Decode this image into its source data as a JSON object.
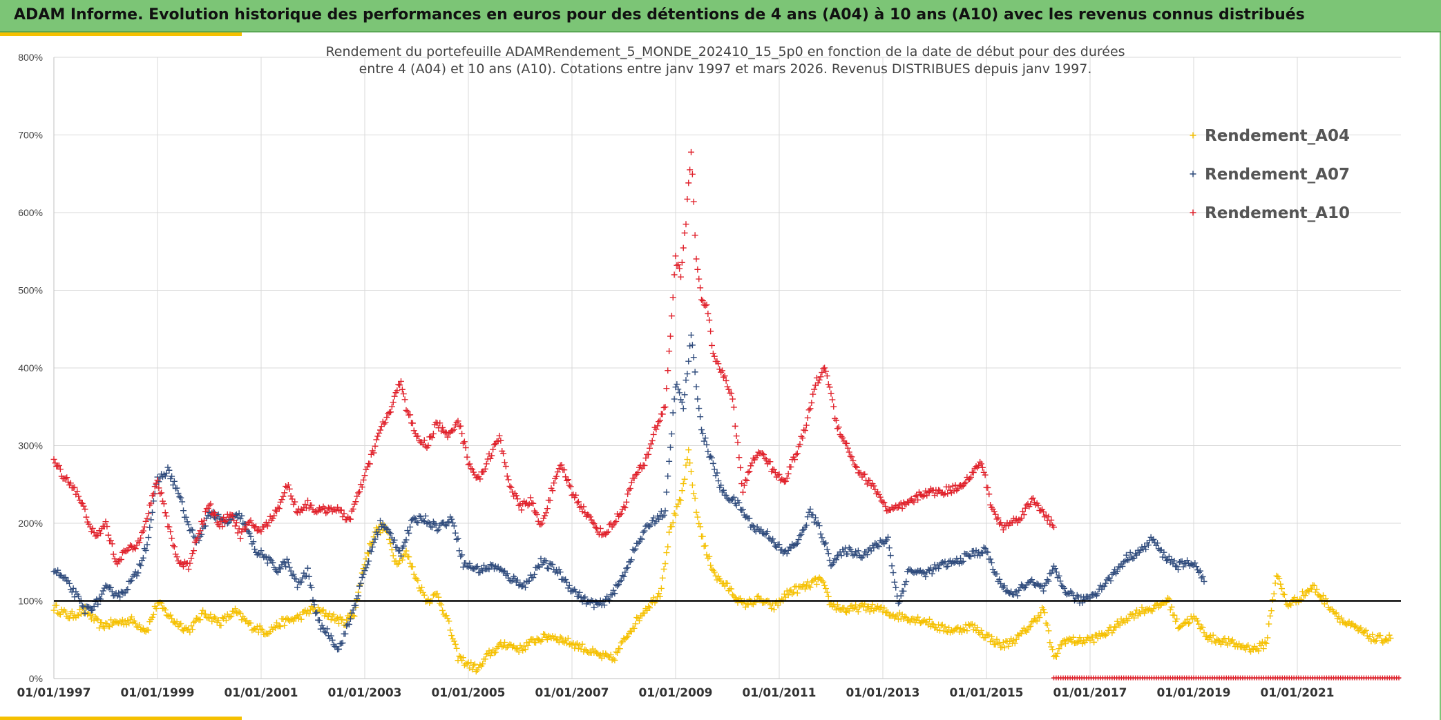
{
  "header": {
    "title": "ADAM Informe. Evolution historique des performances en euros pour des détentions de 4 ans (A04) à 10 ans (A10) avec les revenus connus distribués"
  },
  "colors": {
    "banner": "#7cc576",
    "accent": "#f5c000",
    "a04": "#f5c000",
    "a07": "#2f4b7c",
    "a10": "#e0202a",
    "reference_line": "#000000"
  },
  "chart_data": {
    "type": "scatter",
    "title_lines": [
      "Rendement du portefeuille ADAMRendement_5_MONDE_202410_15_5p0  en fonction de la date de début pour des durées",
      "entre 4 (A04) et 10 ans (A10). Cotations entre janv 1997 et mars 2026. Revenus DISTRIBUES depuis janv 1997."
    ],
    "y_ticks": [
      "0%",
      "100%",
      "200%",
      "300%",
      "400%",
      "500%",
      "600%",
      "700%",
      "800%"
    ],
    "ylim": [
      0,
      800
    ],
    "x_ticks": [
      "01/01/1997",
      "01/01/1999",
      "01/01/2001",
      "01/01/2003",
      "01/01/2005",
      "01/01/2007",
      "01/01/2009",
      "01/01/2011",
      "01/01/2013",
      "01/01/2015",
      "01/01/2017",
      "01/01/2019",
      "01/01/2021"
    ],
    "xlim": [
      1997.0,
      2023.0
    ],
    "grid": true,
    "reference_line": 100,
    "legend_position": "top-right",
    "series": [
      {
        "name": "Rendement_A04",
        "color": "#f5c000",
        "points": [
          [
            1997.0,
            92
          ],
          [
            1997.3,
            80
          ],
          [
            1997.6,
            88
          ],
          [
            1997.9,
            68
          ],
          [
            1998.2,
            72
          ],
          [
            1998.5,
            75
          ],
          [
            1998.8,
            62
          ],
          [
            1999.0,
            98
          ],
          [
            1999.3,
            75
          ],
          [
            1999.6,
            62
          ],
          [
            1999.9,
            85
          ],
          [
            2000.2,
            72
          ],
          [
            2000.5,
            86
          ],
          [
            2000.8,
            68
          ],
          [
            2001.1,
            60
          ],
          [
            2001.4,
            72
          ],
          [
            2001.7,
            78
          ],
          [
            2002.0,
            90
          ],
          [
            2002.3,
            82
          ],
          [
            2002.6,
            72
          ],
          [
            2002.8,
            85
          ],
          [
            2003.0,
            150
          ],
          [
            2003.2,
            190
          ],
          [
            2003.4,
            195
          ],
          [
            2003.6,
            150
          ],
          [
            2003.8,
            162
          ],
          [
            2004.0,
            128
          ],
          [
            2004.2,
            100
          ],
          [
            2004.4,
            108
          ],
          [
            2004.6,
            75
          ],
          [
            2004.8,
            28
          ],
          [
            2005.0,
            18
          ],
          [
            2005.2,
            12
          ],
          [
            2005.4,
            32
          ],
          [
            2005.7,
            45
          ],
          [
            2006.0,
            38
          ],
          [
            2006.3,
            50
          ],
          [
            2006.6,
            55
          ],
          [
            2006.9,
            48
          ],
          [
            2007.2,
            40
          ],
          [
            2007.5,
            30
          ],
          [
            2007.8,
            25
          ],
          [
            2008.1,
            60
          ],
          [
            2008.4,
            88
          ],
          [
            2008.7,
            110
          ],
          [
            2008.9,
            195
          ],
          [
            2009.1,
            230
          ],
          [
            2009.25,
            290
          ],
          [
            2009.4,
            215
          ],
          [
            2009.6,
            160
          ],
          [
            2009.8,
            130
          ],
          [
            2010.0,
            118
          ],
          [
            2010.3,
            95
          ],
          [
            2010.6,
            102
          ],
          [
            2010.9,
            92
          ],
          [
            2011.2,
            112
          ],
          [
            2011.5,
            118
          ],
          [
            2011.8,
            128
          ],
          [
            2012.0,
            95
          ],
          [
            2012.3,
            88
          ],
          [
            2012.6,
            92
          ],
          [
            2012.9,
            90
          ],
          [
            2013.2,
            82
          ],
          [
            2013.5,
            78
          ],
          [
            2013.8,
            75
          ],
          [
            2014.1,
            65
          ],
          [
            2014.4,
            62
          ],
          [
            2014.7,
            68
          ],
          [
            2015.0,
            55
          ],
          [
            2015.3,
            42
          ],
          [
            2015.6,
            52
          ],
          [
            2015.9,
            72
          ],
          [
            2016.1,
            90
          ],
          [
            2016.3,
            25
          ],
          [
            2016.5,
            50
          ],
          [
            2016.8,
            48
          ],
          [
            2017.1,
            52
          ],
          [
            2017.4,
            62
          ],
          [
            2017.7,
            78
          ],
          [
            2018.0,
            88
          ],
          [
            2018.3,
            92
          ],
          [
            2018.5,
            102
          ],
          [
            2018.7,
            68
          ],
          [
            2019.0,
            78
          ],
          [
            2019.3,
            52
          ],
          [
            2019.6,
            48
          ],
          [
            2019.9,
            42
          ],
          [
            2020.2,
            38
          ],
          [
            2020.4,
            45
          ],
          [
            2020.6,
            135
          ],
          [
            2020.8,
            95
          ],
          [
            2021.0,
            102
          ],
          [
            2021.3,
            118
          ],
          [
            2021.6,
            95
          ],
          [
            2021.9,
            72
          ],
          [
            2022.2,
            62
          ],
          [
            2022.5,
            50
          ],
          [
            2022.8,
            52
          ]
        ]
      },
      {
        "name": "Rendement_A07",
        "color": "#2f4b7c",
        "points": [
          [
            1997.0,
            140
          ],
          [
            1997.2,
            128
          ],
          [
            1997.4,
            110
          ],
          [
            1997.6,
            88
          ],
          [
            1997.8,
            95
          ],
          [
            1998.0,
            115
          ],
          [
            1998.3,
            108
          ],
          [
            1998.6,
            135
          ],
          [
            1998.8,
            175
          ],
          [
            1999.0,
            255
          ],
          [
            1999.2,
            268
          ],
          [
            1999.4,
            240
          ],
          [
            1999.6,
            195
          ],
          [
            1999.8,
            175
          ],
          [
            2000.0,
            215
          ],
          [
            2000.3,
            200
          ],
          [
            2000.6,
            210
          ],
          [
            2000.9,
            165
          ],
          [
            2001.1,
            155
          ],
          [
            2001.3,
            140
          ],
          [
            2001.5,
            150
          ],
          [
            2001.7,
            120
          ],
          [
            2001.9,
            138
          ],
          [
            2002.1,
            72
          ],
          [
            2002.3,
            58
          ],
          [
            2002.5,
            38
          ],
          [
            2002.7,
            72
          ],
          [
            2002.9,
            115
          ],
          [
            2003.1,
            160
          ],
          [
            2003.3,
            200
          ],
          [
            2003.5,
            185
          ],
          [
            2003.7,
            162
          ],
          [
            2003.9,
            200
          ],
          [
            2004.1,
            208
          ],
          [
            2004.4,
            195
          ],
          [
            2004.7,
            205
          ],
          [
            2004.9,
            148
          ],
          [
            2005.2,
            140
          ],
          [
            2005.5,
            145
          ],
          [
            2005.8,
            130
          ],
          [
            2006.1,
            120
          ],
          [
            2006.4,
            150
          ],
          [
            2006.7,
            140
          ],
          [
            2007.0,
            115
          ],
          [
            2007.3,
            98
          ],
          [
            2007.6,
            95
          ],
          [
            2007.9,
            120
          ],
          [
            2008.2,
            165
          ],
          [
            2008.5,
            200
          ],
          [
            2008.8,
            215
          ],
          [
            2009.0,
            380
          ],
          [
            2009.15,
            350
          ],
          [
            2009.3,
            440
          ],
          [
            2009.5,
            320
          ],
          [
            2009.7,
            280
          ],
          [
            2009.9,
            240
          ],
          [
            2010.2,
            225
          ],
          [
            2010.5,
            195
          ],
          [
            2010.8,
            185
          ],
          [
            2011.1,
            160
          ],
          [
            2011.4,
            180
          ],
          [
            2011.6,
            215
          ],
          [
            2011.8,
            190
          ],
          [
            2012.0,
            150
          ],
          [
            2012.3,
            165
          ],
          [
            2012.6,
            160
          ],
          [
            2012.9,
            172
          ],
          [
            2013.1,
            180
          ],
          [
            2013.3,
            95
          ],
          [
            2013.5,
            140
          ],
          [
            2013.8,
            135
          ],
          [
            2014.1,
            145
          ],
          [
            2014.4,
            150
          ],
          [
            2014.7,
            160
          ],
          [
            2015.0,
            165
          ],
          [
            2015.2,
            130
          ],
          [
            2015.5,
            105
          ],
          [
            2015.8,
            125
          ],
          [
            2016.1,
            115
          ],
          [
            2016.3,
            140
          ],
          [
            2016.5,
            115
          ],
          [
            2016.8,
            100
          ],
          [
            2017.1,
            110
          ],
          [
            2017.4,
            130
          ],
          [
            2017.7,
            155
          ],
          [
            2018.0,
            165
          ],
          [
            2018.2,
            180
          ],
          [
            2018.4,
            160
          ],
          [
            2018.7,
            145
          ],
          [
            2019.0,
            150
          ],
          [
            2019.2,
            125
          ]
        ]
      },
      {
        "name": "Rendement_A10",
        "color": "#e0202a",
        "points": [
          [
            1997.0,
            280
          ],
          [
            1997.2,
            260
          ],
          [
            1997.4,
            245
          ],
          [
            1997.6,
            215
          ],
          [
            1997.8,
            180
          ],
          [
            1998.0,
            200
          ],
          [
            1998.2,
            150
          ],
          [
            1998.4,
            165
          ],
          [
            1998.6,
            170
          ],
          [
            1998.8,
            210
          ],
          [
            1999.0,
            255
          ],
          [
            1999.2,
            200
          ],
          [
            1999.4,
            150
          ],
          [
            1999.6,
            145
          ],
          [
            1999.8,
            190
          ],
          [
            2000.0,
            225
          ],
          [
            2000.2,
            195
          ],
          [
            2000.4,
            215
          ],
          [
            2000.6,
            185
          ],
          [
            2000.8,
            200
          ],
          [
            2001.0,
            190
          ],
          [
            2001.3,
            215
          ],
          [
            2001.5,
            250
          ],
          [
            2001.7,
            215
          ],
          [
            2001.9,
            225
          ],
          [
            2002.1,
            215
          ],
          [
            2002.4,
            220
          ],
          [
            2002.7,
            205
          ],
          [
            2002.9,
            240
          ],
          [
            2003.1,
            280
          ],
          [
            2003.3,
            320
          ],
          [
            2003.5,
            345
          ],
          [
            2003.7,
            385
          ],
          [
            2003.8,
            350
          ],
          [
            2004.0,
            310
          ],
          [
            2004.2,
            300
          ],
          [
            2004.4,
            330
          ],
          [
            2004.6,
            310
          ],
          [
            2004.8,
            335
          ],
          [
            2005.0,
            280
          ],
          [
            2005.2,
            255
          ],
          [
            2005.4,
            285
          ],
          [
            2005.6,
            310
          ],
          [
            2005.8,
            250
          ],
          [
            2006.0,
            220
          ],
          [
            2006.2,
            230
          ],
          [
            2006.4,
            195
          ],
          [
            2006.6,
            240
          ],
          [
            2006.8,
            275
          ],
          [
            2007.0,
            240
          ],
          [
            2007.2,
            220
          ],
          [
            2007.4,
            200
          ],
          [
            2007.6,
            185
          ],
          [
            2007.8,
            200
          ],
          [
            2008.0,
            220
          ],
          [
            2008.2,
            260
          ],
          [
            2008.4,
            275
          ],
          [
            2008.6,
            320
          ],
          [
            2008.8,
            350
          ],
          [
            2009.0,
            540
          ],
          [
            2009.1,
            520
          ],
          [
            2009.2,
            590
          ],
          [
            2009.3,
            680
          ],
          [
            2009.4,
            540
          ],
          [
            2009.5,
            490
          ],
          [
            2009.6,
            480
          ],
          [
            2009.75,
            410
          ],
          [
            2009.9,
            395
          ],
          [
            2010.1,
            360
          ],
          [
            2010.3,
            240
          ],
          [
            2010.5,
            285
          ],
          [
            2010.7,
            290
          ],
          [
            2010.9,
            265
          ],
          [
            2011.1,
            255
          ],
          [
            2011.3,
            285
          ],
          [
            2011.5,
            320
          ],
          [
            2011.7,
            380
          ],
          [
            2011.9,
            400
          ],
          [
            2012.1,
            330
          ],
          [
            2012.3,
            300
          ],
          [
            2012.5,
            270
          ],
          [
            2012.7,
            255
          ],
          [
            2012.9,
            240
          ],
          [
            2013.1,
            215
          ],
          [
            2013.3,
            220
          ],
          [
            2013.5,
            225
          ],
          [
            2013.8,
            240
          ],
          [
            2014.1,
            240
          ],
          [
            2014.4,
            245
          ],
          [
            2014.7,
            260
          ],
          [
            2014.9,
            280
          ],
          [
            2015.1,
            220
          ],
          [
            2015.3,
            195
          ],
          [
            2015.6,
            205
          ],
          [
            2015.9,
            230
          ],
          [
            2016.1,
            215
          ],
          [
            2016.3,
            195
          ]
        ]
      }
    ]
  }
}
